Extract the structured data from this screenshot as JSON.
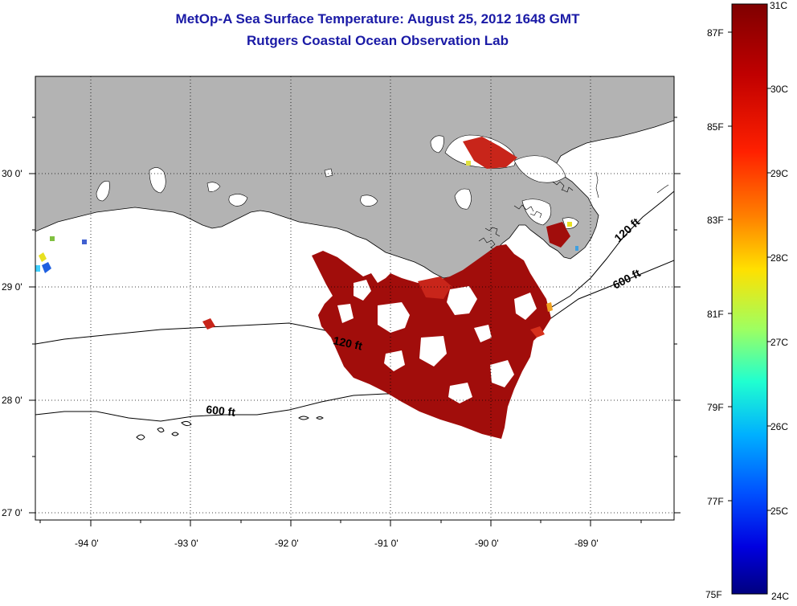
{
  "header": {
    "title": "MetOp-A Sea Surface Temperature:  August 25, 2012 1648 GMT",
    "subtitle": "Rutgers Coastal Ocean Observation Lab"
  },
  "map": {
    "lat_ticks": [
      "30 0'",
      "29 0'",
      "28 0'",
      "27 0'"
    ],
    "lon_ticks": [
      "-94 0'",
      "-93 0'",
      "-92 0'",
      "-91 0'",
      "-90 0'",
      "-89 0'"
    ],
    "contour_labels": [
      "120 ft",
      "600 ft",
      "120 ft",
      "600 ft"
    ],
    "colors": {
      "land": "#b3b3b3",
      "ocean": "#ffffff",
      "sst_warm": "#9e0a0a",
      "sst_hot": "#c81e14"
    }
  },
  "colorbar": {
    "celsius": [
      "31C",
      "30C",
      "29C",
      "28C",
      "27C",
      "26C",
      "25C",
      "24C"
    ],
    "fahrenheit": [
      "87F",
      "85F",
      "83F",
      "81F",
      "79F",
      "77F",
      "75F"
    ],
    "range_c": [
      24,
      31
    ],
    "stops": [
      "#7f0000",
      "#ff0000",
      "#ff8000",
      "#ffff00",
      "#80ff80",
      "#00ffff",
      "#0080ff",
      "#0000ff",
      "#00007f"
    ]
  }
}
